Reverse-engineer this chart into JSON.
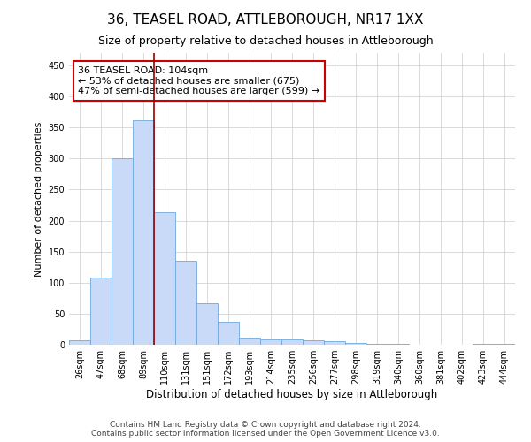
{
  "title": "36, TEASEL ROAD, ATTLEBOROUGH, NR17 1XX",
  "subtitle": "Size of property relative to detached houses in Attleborough",
  "xlabel": "Distribution of detached houses by size in Attleborough",
  "ylabel": "Number of detached properties",
  "categories": [
    "26sqm",
    "47sqm",
    "68sqm",
    "89sqm",
    "110sqm",
    "131sqm",
    "151sqm",
    "172sqm",
    "193sqm",
    "214sqm",
    "235sqm",
    "256sqm",
    "277sqm",
    "298sqm",
    "319sqm",
    "340sqm",
    "360sqm",
    "381sqm",
    "402sqm",
    "423sqm",
    "444sqm"
  ],
  "values": [
    7,
    108,
    300,
    362,
    213,
    136,
    67,
    37,
    12,
    9,
    9,
    7,
    5,
    3,
    2,
    2,
    0,
    0,
    0,
    2,
    2
  ],
  "bar_color": "#c9daf8",
  "bar_edge_color": "#6fa8dc",
  "vline_x": 3.5,
  "vline_color": "#990000",
  "annotation_line1": "36 TEASEL ROAD: 104sqm",
  "annotation_line2": "← 53% of detached houses are smaller (675)",
  "annotation_line3": "47% of semi-detached houses are larger (599) →",
  "ylim": [
    0,
    470
  ],
  "yticks": [
    0,
    50,
    100,
    150,
    200,
    250,
    300,
    350,
    400,
    450
  ],
  "footer": "Contains HM Land Registry data © Crown copyright and database right 2024.\nContains public sector information licensed under the Open Government Licence v3.0.",
  "title_fontsize": 11,
  "subtitle_fontsize": 9,
  "xlabel_fontsize": 8.5,
  "ylabel_fontsize": 8,
  "tick_fontsize": 7,
  "annotation_fontsize": 8
}
